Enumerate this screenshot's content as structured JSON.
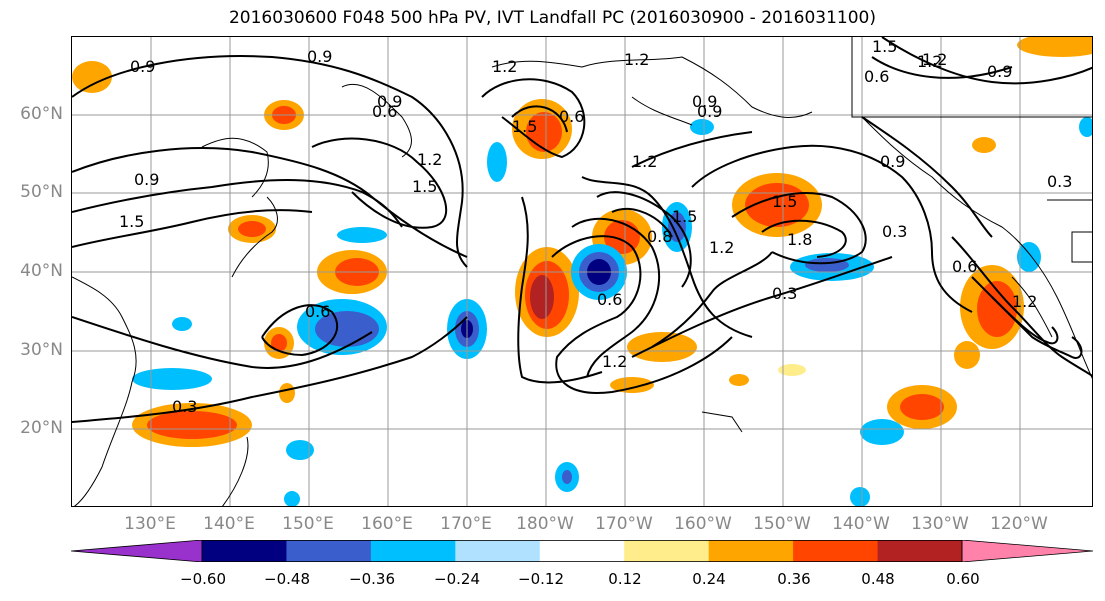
{
  "title": "2016030600 F048 500 hPa PV, IVT Landfall PC (2016030900 - 2016031100)",
  "lat_labels": [
    "60°N",
    "50°N",
    "40°N",
    "30°N",
    "20°N"
  ],
  "lon_labels": [
    "130°E",
    "140°E",
    "150°E",
    "160°E",
    "170°E",
    "180°W",
    "170°W",
    "160°W",
    "150°W",
    "140°W",
    "130°W",
    "120°W"
  ],
  "colorbar": {
    "ticks": [
      "−0.60",
      "−0.48",
      "−0.36",
      "−0.24",
      "−0.12",
      "0.12",
      "0.24",
      "0.36",
      "0.48",
      "0.60"
    ],
    "colors": [
      "#9932cc",
      "#000080",
      "#3a5fcd",
      "#00bfff",
      "#b0e2ff",
      "#ffffff",
      "#ffec8b",
      "#ffa500",
      "#ff4500",
      "#b22222",
      "#ff82ab"
    ]
  },
  "contour_labels": [
    "0.9",
    "0.9",
    "0.9",
    "1.5",
    "1.2",
    "1.2",
    "0.9",
    "1.5",
    "1.2",
    "1.5",
    "0.6",
    "0.9",
    "1.2",
    "1.5",
    "1.2",
    "0.9",
    "0.6",
    "1.5",
    "1.2",
    "1.5",
    "0.6",
    "0.9",
    "1.8",
    "0.3",
    "0.8",
    "1.2",
    "0.6",
    "0.9",
    "0.3",
    "0.6",
    "0.3",
    "1.2",
    "0.3",
    "0.6",
    "1.2"
  ]
}
